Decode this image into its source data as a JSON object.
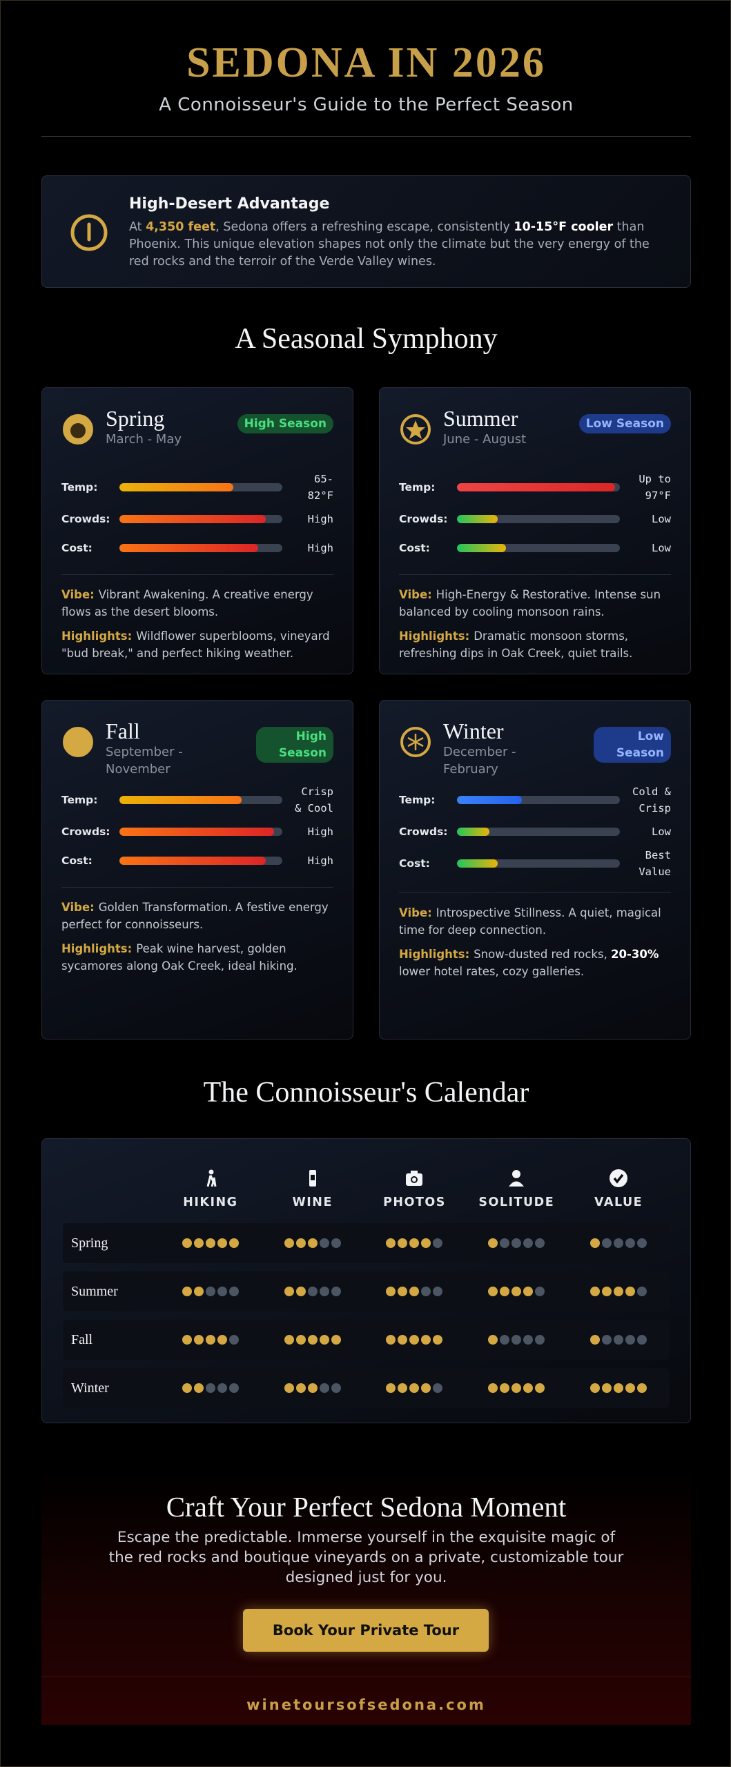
{
  "header": {
    "title": "SEDONA IN 2026",
    "subtitle": "A Connoisseur's Guide to the Perfect Season"
  },
  "intro": {
    "title": "High-Desert Advantage",
    "parts": [
      {
        "text": "At "
      },
      {
        "text": "4,350 feet",
        "color": "#d4a843",
        "bold": true
      },
      {
        "text": ", Sedona offers a refreshing escape, consistently "
      },
      {
        "text": "10-15°F cooler",
        "color": "#ffffff",
        "bold": true
      },
      {
        "text": " than Phoenix. This unique elevation shapes not only the climate but the very energy of the red rocks and the terroir of the Verde Valley wines."
      }
    ]
  },
  "seasons_title": "A Seasonal Symphony",
  "bar_lim": [
    0,
    100
  ],
  "seasons": [
    {
      "name": "Spring",
      "months": "March - May",
      "badge": "High Season",
      "badge_color": "#4ade80",
      "badge_bg": "#14532d",
      "metrics": [
        {
          "label": "Temp:",
          "value": "65-82°F",
          "level": 70,
          "colors": [
            "#eab308",
            "#f97316"
          ]
        },
        {
          "label": "Crowds:",
          "value": "High",
          "level": 90,
          "colors": [
            "#f97316",
            "#dc2626"
          ]
        },
        {
          "label": "Cost:",
          "value": "High",
          "level": 85,
          "colors": [
            "#f97316",
            "#dc2626"
          ]
        }
      ],
      "vibe": {
        "label": "Vibe:",
        "parts": [
          {
            "text": "Vibrant Awakening. A creative energy flows as the desert blooms."
          }
        ]
      },
      "highlights": {
        "label": "Highlights:",
        "parts": [
          {
            "text": "Wildflower superblooms, vineyard \"bud break,\" and perfect hiking weather."
          }
        ]
      }
    },
    {
      "name": "Summer",
      "months": "June - August",
      "badge": "Low Season",
      "badge_color": "#93b4ff",
      "badge_bg": "#1e3a8a",
      "metrics": [
        {
          "label": "Temp:",
          "value": "Up to 97°F",
          "level": 97,
          "colors": [
            "#ef4444",
            "#dc2626"
          ]
        },
        {
          "label": "Crowds:",
          "value": "Low",
          "level": 25,
          "colors": [
            "#22c55e",
            "#eab308"
          ]
        },
        {
          "label": "Cost:",
          "value": "Low",
          "level": 30,
          "colors": [
            "#22c55e",
            "#eab308"
          ]
        }
      ],
      "vibe": {
        "label": "Vibe:",
        "parts": [
          {
            "text": "High-Energy & Restorative. Intense sun balanced by cooling monsoon rains."
          }
        ]
      },
      "highlights": {
        "label": "Highlights:",
        "parts": [
          {
            "text": "Dramatic monsoon storms, refreshing dips in Oak Creek, quiet trails."
          }
        ]
      }
    },
    {
      "name": "Fall",
      "months": "September - November",
      "badge": "High Season",
      "badge_color": "#4ade80",
      "badge_bg": "#14532d",
      "metrics": [
        {
          "label": "Temp:",
          "value": "Crisp & Cool",
          "level": 75,
          "colors": [
            "#eab308",
            "#f97316"
          ]
        },
        {
          "label": "Crowds:",
          "value": "High",
          "level": 95,
          "colors": [
            "#f97316",
            "#dc2626"
          ]
        },
        {
          "label": "Cost:",
          "value": "High",
          "level": 90,
          "colors": [
            "#f97316",
            "#dc2626"
          ]
        }
      ],
      "vibe": {
        "label": "Vibe:",
        "parts": [
          {
            "text": "Golden Transformation. A festive energy perfect for connoisseurs."
          }
        ]
      },
      "highlights": {
        "label": "Highlights:",
        "parts": [
          {
            "text": "Peak wine harvest, golden sycamores along Oak Creek, ideal hiking."
          }
        ]
      }
    },
    {
      "name": "Winter",
      "months": "December - February",
      "badge": "Low Season",
      "badge_color": "#93b4ff",
      "badge_bg": "#1e3a8a",
      "metrics": [
        {
          "label": "Temp:",
          "value": "Cold & Crisp",
          "level": 40,
          "colors": [
            "#3b82f6",
            "#2563eb"
          ]
        },
        {
          "label": "Crowds:",
          "value": "Low",
          "level": 20,
          "colors": [
            "#22c55e",
            "#eab308"
          ]
        },
        {
          "label": "Cost:",
          "value": "Best Value",
          "level": 25,
          "colors": [
            "#22c55e",
            "#eab308"
          ]
        }
      ],
      "vibe": {
        "label": "Vibe:",
        "parts": [
          {
            "text": "Introspective Stillness. A quiet, magical time for deep connection."
          }
        ]
      },
      "highlights": {
        "label": "Highlights:",
        "parts": [
          {
            "text": "Snow-dusted red rocks, "
          },
          {
            "text": "20-30%",
            "color": "#ffffff",
            "bold": true
          },
          {
            "text": " lower hotel rates, cozy galleries."
          }
        ]
      }
    }
  ],
  "calendar": {
    "title": "The Connoisseur's Calendar",
    "rating_lim": [
      0,
      5
    ],
    "columns": [
      "HIKING",
      "WINE",
      "PHOTOS",
      "SOLITUDE",
      "VALUE"
    ],
    "rows": [
      {
        "label": "Spring",
        "ratings": [
          5,
          3,
          4,
          1,
          1
        ]
      },
      {
        "label": "Summer",
        "ratings": [
          2,
          2,
          3,
          4,
          4
        ]
      },
      {
        "label": "Fall",
        "ratings": [
          4,
          5,
          5,
          1,
          1
        ]
      },
      {
        "label": "Winter",
        "ratings": [
          2,
          3,
          4,
          5,
          5
        ]
      }
    ]
  },
  "cta": {
    "title": "Craft Your Perfect Sedona Moment",
    "text": "Escape the predictable. Immerse yourself in the exquisite magic of the red rocks and boutique vineyards on a private, customizable tour designed just for you.",
    "button": "Book Your Private Tour",
    "site": "winetoursofsedona.com"
  }
}
